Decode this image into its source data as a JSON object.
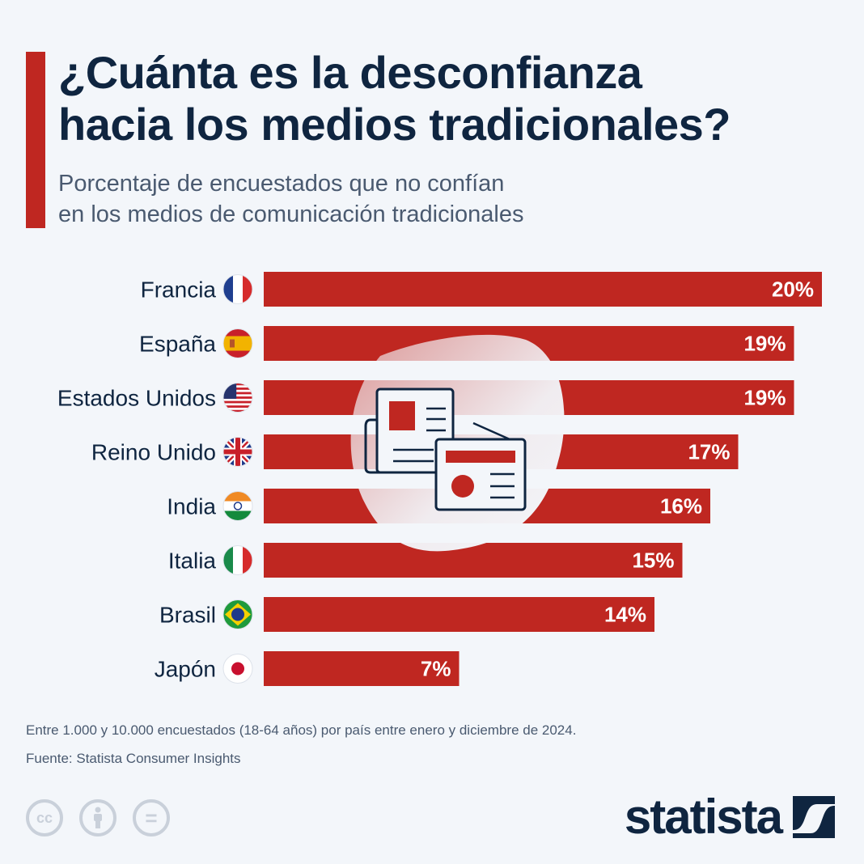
{
  "header": {
    "title_line1": "¿Cuánta es la desconfianza",
    "title_line2": "hacia los medios tradicionales?",
    "subtitle_line1": "Porcentaje de encuestados que no confían",
    "subtitle_line2": "en los medios de comunicación tradicionales"
  },
  "colors": {
    "bar": "#bf2721",
    "accent": "#bf2721",
    "title": "#0f2540",
    "background": "#f3f6fa"
  },
  "chart_data": {
    "type": "bar",
    "orientation": "horizontal",
    "title": "¿Cuánta es la desconfianza hacia los medios tradicionales?",
    "subtitle": "Porcentaje de encuestados que no confían en los medios de comunicación tradicionales",
    "categories": [
      "Francia",
      "España",
      "Estados Unidos",
      "Reino Unido",
      "India",
      "Italia",
      "Brasil",
      "Japón"
    ],
    "flags": [
      "france",
      "spain",
      "usa",
      "uk",
      "india",
      "italy",
      "brazil",
      "japan"
    ],
    "values": [
      20,
      19,
      19,
      17,
      16,
      15,
      14,
      7
    ],
    "labels": [
      "20%",
      "19%",
      "19%",
      "17%",
      "16%",
      "15%",
      "14%",
      "7%"
    ],
    "unit": "%",
    "xlim": [
      0,
      20
    ],
    "grid": false,
    "legend": "none"
  },
  "footer": {
    "note": "Entre 1.000 y 10.000 encuestados (18-64 años) por país entre enero y diciembre de 2024.",
    "source": "Fuente: Statista Consumer Insights",
    "license_icons": [
      "cc-icon",
      "attribution-icon",
      "no-derivatives-icon"
    ],
    "cc_label": "cc",
    "nd_label": "=",
    "brand": "statista"
  }
}
